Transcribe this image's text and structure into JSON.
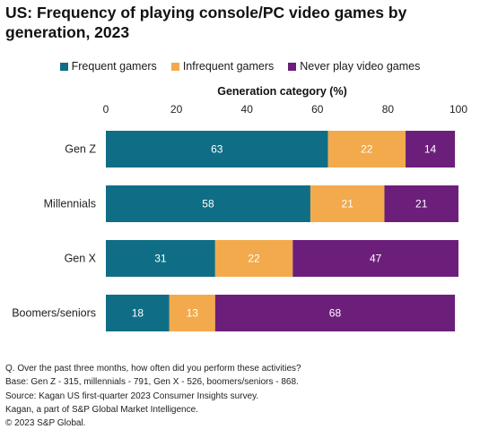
{
  "chart_data": {
    "type": "bar",
    "orientation": "horizontal",
    "stacked": true,
    "title": "US: Frequency of playing console/PC video games by generation, 2023",
    "xlabel": "Generation category (%)",
    "ylabel": "",
    "xlim": [
      0,
      100
    ],
    "xticks": [
      "0",
      "20",
      "40",
      "60",
      "80",
      "100"
    ],
    "categories": [
      "Gen Z",
      "Millennials",
      "Gen X",
      "Boomers/seniors"
    ],
    "series": [
      {
        "name": "Frequent gamers",
        "color": "#0f6e86",
        "values": [
          63,
          58,
          31,
          18
        ]
      },
      {
        "name": "Infrequent gamers",
        "color": "#f2aa4c",
        "values": [
          22,
          21,
          22,
          13
        ]
      },
      {
        "name": "Never play video games",
        "color": "#6c1f7a",
        "values": [
          14,
          21,
          47,
          68
        ]
      }
    ],
    "legend_position": "top",
    "grid": false
  },
  "notes": [
    "Q. Over the past three months, how often did you perform these activities?",
    "Base: Gen Z - 315, millennials - 791, Gen X - 526, boomers/seniors - 868.",
    "Source: Kagan US first-quarter 2023 Consumer Insights survey.",
    "Kagan, a part of S&P Global Market Intelligence.",
    "© 2023 S&P Global."
  ]
}
